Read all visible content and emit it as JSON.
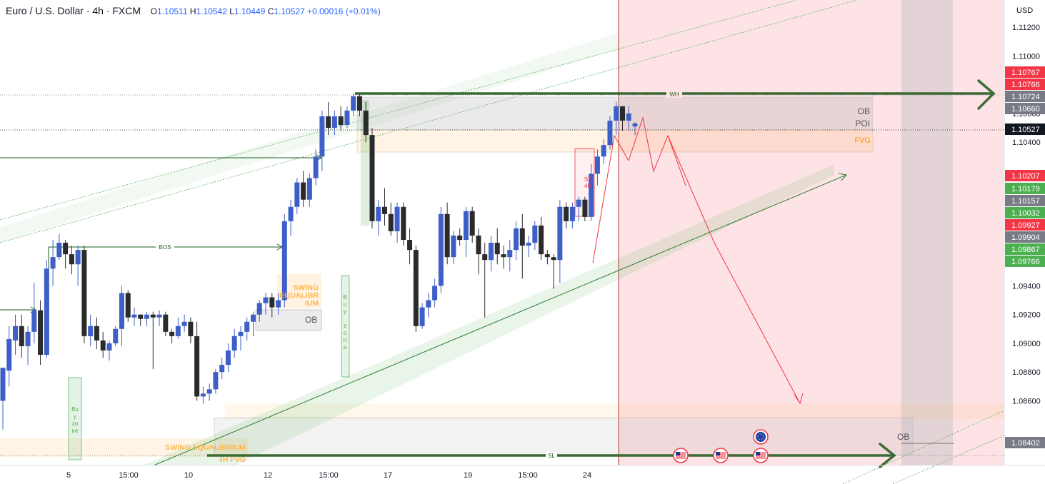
{
  "header": {
    "symbol": "Euro / U.S. Dollar · 4h · FXCM",
    "open": "1.10511",
    "high": "1.10542",
    "low": "1.10449",
    "close": "1.10527",
    "change": "+0.00016 (+0.01%)",
    "open_key": "O",
    "high_key": "H",
    "low_key": "L",
    "close_key": "C"
  },
  "chart_data": {
    "type": "candlestick",
    "currency_label": "USD",
    "ylim": [
      1.0815,
      1.1135
    ],
    "y_ticks": [
      "1.11200",
      "1.11000",
      "1.10600",
      "1.10400",
      "1.09400",
      "1.09200",
      "1.09000",
      "1.08800",
      "1.08600"
    ],
    "x_ticks": [
      "5",
      "15:00",
      "10",
      "12",
      "15:00",
      "17",
      "19",
      "15:00",
      "24"
    ],
    "price_tags": [
      {
        "value": "1.10767",
        "color": "#f23645"
      },
      {
        "value": "1.10766",
        "color": "#f23645"
      },
      {
        "value": "1.10724",
        "color": "#787b86"
      },
      {
        "value": "1.10660",
        "color": "#787b86"
      },
      {
        "value": "1.10527",
        "color": "#131722"
      },
      {
        "value": "1.10207",
        "color": "#f23645"
      },
      {
        "value": "1.10179",
        "color": "#4caf50"
      },
      {
        "value": "1.10157",
        "color": "#787b86"
      },
      {
        "value": "1.10032",
        "color": "#4caf50"
      },
      {
        "value": "1.09927",
        "color": "#f23645"
      },
      {
        "value": "1.09904",
        "color": "#787b86"
      },
      {
        "value": "1.09867",
        "color": "#4caf50"
      },
      {
        "value": "1.09766",
        "color": "#4caf50"
      },
      {
        "value": "1.08402",
        "color": "#787b86"
      }
    ],
    "candles": [
      [
        1.086,
        1.088,
        1.084,
        1.0883
      ],
      [
        1.0881,
        1.0912,
        1.087,
        1.0903
      ],
      [
        1.0902,
        1.092,
        1.0892,
        1.0912
      ],
      [
        1.0912,
        1.092,
        1.089,
        1.0898
      ],
      [
        1.0898,
        1.0912,
        1.0885,
        1.0908
      ],
      [
        1.0908,
        1.0942,
        1.09,
        1.0923
      ],
      [
        1.0923,
        1.093,
        1.0885,
        1.0892
      ],
      [
        1.0892,
        1.0958,
        1.089,
        1.0952
      ],
      [
        1.0952,
        1.0972,
        1.094,
        1.096
      ],
      [
        1.096,
        1.0976,
        1.0958,
        1.097
      ],
      [
        1.097,
        1.0972,
        1.0952,
        1.0962
      ],
      [
        1.0962,
        1.0968,
        1.0948,
        1.0955
      ],
      [
        1.0955,
        1.0968,
        1.094,
        1.0965
      ],
      [
        1.0965,
        1.0968,
        1.09,
        1.0905
      ],
      [
        1.0905,
        1.092,
        1.0898,
        1.0912
      ],
      [
        1.0912,
        1.0918,
        1.0896,
        1.0902
      ],
      [
        1.0902,
        1.0908,
        1.089,
        1.0895
      ],
      [
        1.0895,
        1.0902,
        1.0888,
        1.09
      ],
      [
        1.09,
        1.0912,
        1.0898,
        1.091
      ],
      [
        1.091,
        1.094,
        1.0898,
        1.0935
      ],
      [
        1.0935,
        1.0937,
        1.0915,
        1.0918
      ],
      [
        1.0918,
        1.0925,
        1.0912,
        1.092
      ],
      [
        1.092,
        1.092,
        1.0912,
        1.0917
      ],
      [
        1.0917,
        1.0922,
        1.0912,
        1.092
      ],
      [
        1.092,
        1.0922,
        1.0882,
        1.0918
      ],
      [
        1.0918,
        1.0923,
        1.0912,
        1.092
      ],
      [
        1.092,
        1.0922,
        1.0905,
        1.0908
      ],
      [
        1.0908,
        1.091,
        1.09,
        1.0905
      ],
      [
        1.0905,
        1.0918,
        1.0903,
        1.0912
      ],
      [
        1.0912,
        1.092,
        1.0908,
        1.0915
      ],
      [
        1.0915,
        1.0918,
        1.09,
        1.0905
      ],
      [
        1.0905,
        1.0915,
        1.086,
        1.0863
      ],
      [
        1.0863,
        1.087,
        1.0858,
        1.0865
      ],
      [
        1.0865,
        1.0872,
        1.086,
        1.0868
      ],
      [
        1.0868,
        1.0882,
        1.0865,
        1.088
      ],
      [
        1.088,
        1.089,
        1.0875,
        1.0885
      ],
      [
        1.0885,
        1.09,
        1.088,
        1.0895
      ],
      [
        1.0895,
        1.091,
        1.089,
        1.0905
      ],
      [
        1.0905,
        1.0912,
        1.0895,
        1.0908
      ],
      [
        1.0908,
        1.0918,
        1.0902,
        1.0915
      ],
      [
        1.0915,
        1.0922,
        1.0905,
        1.092
      ],
      [
        1.092,
        1.093,
        1.0915,
        1.0928
      ],
      [
        1.0928,
        1.0935,
        1.092,
        1.0932
      ],
      [
        1.0932,
        1.0935,
        1.0918,
        1.0925
      ],
      [
        1.0925,
        1.0935,
        1.092,
        1.093
      ],
      [
        1.093,
        1.099,
        1.0925,
        1.0985
      ],
      [
        1.0985,
        1.1,
        1.0975,
        1.0995
      ],
      [
        1.0995,
        1.1015,
        1.099,
        1.1012
      ],
      [
        1.1012,
        1.102,
        1.0995,
        1.1
      ],
      [
        1.1,
        1.1018,
        1.0995,
        1.1015
      ],
      [
        1.1015,
        1.1035,
        1.101,
        1.103
      ],
      [
        1.103,
        1.1062,
        1.102,
        1.1058
      ],
      [
        1.1058,
        1.1068,
        1.1045,
        1.105
      ],
      [
        1.105,
        1.1062,
        1.1045,
        1.1058
      ],
      [
        1.1058,
        1.1065,
        1.1048,
        1.1052
      ],
      [
        1.1052,
        1.1065,
        1.105,
        1.1062
      ],
      [
        1.1062,
        1.1074,
        1.1058,
        1.1072
      ],
      [
        1.1072,
        1.1074,
        1.1058,
        1.1062
      ],
      [
        1.1062,
        1.1068,
        1.104,
        1.1045
      ],
      [
        1.1045,
        1.105,
        1.098,
        1.0985
      ],
      [
        1.0985,
        1.1,
        1.0975,
        1.0995
      ],
      [
        1.0995,
        1.1008,
        1.0982,
        1.099
      ],
      [
        1.099,
        1.0998,
        1.0975,
        1.0978
      ],
      [
        1.0978,
        1.0998,
        1.097,
        1.0995
      ],
      [
        1.0995,
        1.0998,
        1.0968,
        1.0972
      ],
      [
        1.0972,
        1.098,
        1.0955,
        1.0965
      ],
      [
        1.0965,
        1.0968,
        1.0908,
        1.0912
      ],
      [
        1.0912,
        1.0928,
        1.091,
        1.0925
      ],
      [
        1.0925,
        1.0935,
        1.0918,
        1.093
      ],
      [
        1.093,
        1.0945,
        1.0925,
        1.094
      ],
      [
        1.094,
        1.0995,
        1.0935,
        1.099
      ],
      [
        1.099,
        1.0998,
        1.0955,
        1.096
      ],
      [
        1.096,
        1.0978,
        1.0955,
        1.0975
      ],
      [
        1.0975,
        1.098,
        1.0968,
        1.0972
      ],
      [
        1.0972,
        1.0995,
        1.096,
        1.0992
      ],
      [
        1.0992,
        1.0995,
        1.097,
        1.0975
      ],
      [
        1.0975,
        1.098,
        1.0948,
        1.0962
      ],
      [
        1.0962,
        1.097,
        1.0918,
        1.0958
      ],
      [
        1.0958,
        1.0975,
        1.095,
        1.097
      ],
      [
        1.097,
        1.098,
        1.0955,
        1.0962
      ],
      [
        1.0962,
        1.0968,
        1.0952,
        1.096
      ],
      [
        1.096,
        1.0972,
        1.095,
        1.0965
      ],
      [
        1.0965,
        1.0985,
        1.0958,
        1.098
      ],
      [
        1.098,
        1.099,
        1.0945,
        1.0968
      ],
      [
        1.0968,
        1.0975,
        1.096,
        1.097
      ],
      [
        1.097,
        1.0985,
        1.0965,
        1.0982
      ],
      [
        1.0982,
        1.0988,
        1.0958,
        1.0962
      ],
      [
        1.0962,
        1.0965,
        1.0955,
        1.096
      ],
      [
        1.096,
        1.0962,
        1.0938,
        1.0958
      ],
      [
        1.0958,
        1.1,
        1.0942,
        1.0995
      ],
      [
        1.0995,
        1.0998,
        1.098,
        1.0985
      ],
      [
        1.0985,
        1.0998,
        1.098,
        1.0995
      ],
      [
        1.0995,
        1.1002,
        1.0985,
        1.1
      ],
      [
        1.1,
        1.1002,
        1.0985,
        1.0988
      ],
      [
        1.0988,
        1.1025,
        1.0985,
        1.1018
      ],
      [
        1.1018,
        1.1035,
        1.101,
        1.103
      ],
      [
        1.103,
        1.1042,
        1.1025,
        1.1038
      ],
      [
        1.1038,
        1.1058,
        1.1035,
        1.1055
      ],
      [
        1.1055,
        1.1068,
        1.1045,
        1.1065
      ],
      [
        1.1065,
        1.1065,
        1.1048,
        1.1055
      ],
      [
        1.1055,
        1.1065,
        1.1048,
        1.106
      ],
      [
        1.1051,
        1.1054,
        1.1045,
        1.1053
      ]
    ],
    "annotations": {
      "WH": "WH",
      "SL": "SL",
      "BOS": "BOS",
      "OB_top": "OB",
      "POI": "POI",
      "FVG": "FVG",
      "OB_mid": "OB",
      "OB_bottom": "OB",
      "swing_eq_1": [
        "SWING",
        "EQUALIBR",
        "IUM"
      ],
      "swing_eq_2": "SWING EQUALIBRIUM",
      "fvg_4h": "4H FVG",
      "sz_4h": [
        "SZ",
        "4H"
      ],
      "buy_zone_1": [
        "Bu",
        "y",
        "zo",
        "ne"
      ],
      "buy_zone_2": [
        "B",
        "u",
        "y",
        "",
        "z",
        "o",
        "n",
        "e"
      ]
    }
  }
}
